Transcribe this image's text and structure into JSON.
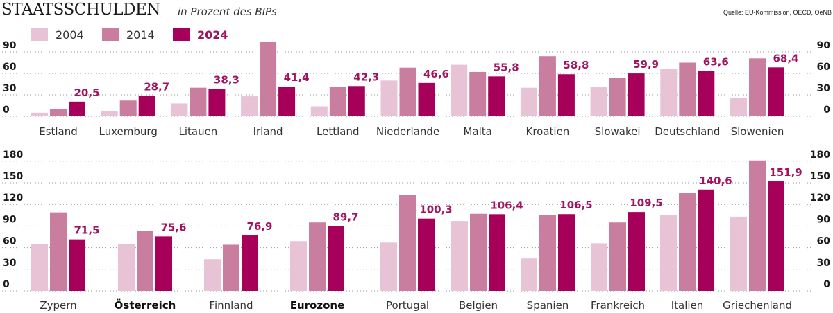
{
  "header": {
    "title": "STAATSSCHULDEN",
    "subtitle": "in Prozent des BIPs",
    "source": "Quelle: EU-Kommission, OECD, OeNB"
  },
  "colors": {
    "y2004": "#e8c3d5",
    "y2014": "#c97e9f",
    "y2024": "#a6005a",
    "label": "#a0145f"
  },
  "legend": [
    {
      "label": "2004",
      "color": "#e8c3d5",
      "bold": false
    },
    {
      "label": "2014",
      "color": "#c97e9f",
      "bold": false
    },
    {
      "label": "2024",
      "color": "#a6005a",
      "bold": true
    }
  ],
  "chart_data": [
    {
      "type": "bar",
      "title": "STAATSSCHULDEN",
      "subtitle": "in Prozent des BIPs",
      "ylabel": "",
      "xlabel": "",
      "ylim": [
        0,
        90
      ],
      "yticks": [
        "0",
        "30",
        "60",
        "90"
      ],
      "ytick_values": [
        0,
        30,
        60,
        90
      ],
      "grid": true,
      "legend_position": "top-left",
      "categories": [
        "Estland",
        "Luxemburg",
        "Litauen",
        "Irland",
        "Lettland",
        "Niederlande",
        "Malta",
        "Kroatien",
        "Slowakei",
        "Deutschland",
        "Slowenien"
      ],
      "bold_categories": [],
      "series": [
        {
          "name": "2004",
          "values": [
            5,
            7,
            18,
            28,
            14,
            50,
            72,
            40,
            41,
            66,
            26
          ]
        },
        {
          "name": "2014",
          "values": [
            10,
            22,
            40,
            104,
            41,
            68,
            62,
            84,
            54,
            75,
            81
          ]
        },
        {
          "name": "2024",
          "values": [
            20.5,
            28.7,
            38.3,
            41.4,
            42.3,
            46.6,
            55.8,
            58.8,
            59.9,
            63.6,
            68.4
          ]
        }
      ],
      "data_labels": [
        "20,5",
        "28,7",
        "38,3",
        "41,4",
        "42,3",
        "46,6",
        "55,8",
        "58,8",
        "59,9",
        "63,6",
        "68,4"
      ]
    },
    {
      "type": "bar",
      "ylim": [
        0,
        180
      ],
      "yticks": [
        "0",
        "30",
        "60",
        "90",
        "120",
        "150",
        "180"
      ],
      "ytick_values": [
        0,
        30,
        60,
        90,
        120,
        150,
        180
      ],
      "grid": true,
      "categories": [
        "Zypern",
        "Österreich",
        "Finnland",
        "Eurozone",
        "Portugal",
        "Belgien",
        "Spanien",
        "Frankreich",
        "Italien",
        "Griechenland"
      ],
      "bold_categories": [
        "Österreich",
        "Eurozone"
      ],
      "series": [
        {
          "name": "2004",
          "values": [
            65,
            65,
            44,
            69,
            67,
            97,
            45,
            66,
            105,
            103
          ]
        },
        {
          "name": "2014",
          "values": [
            109,
            83,
            64,
            95,
            133,
            107,
            105,
            95,
            136,
            181
          ]
        },
        {
          "name": "2024",
          "values": [
            71.5,
            75.6,
            76.9,
            89.7,
            100.3,
            106.4,
            106.5,
            109.5,
            140.6,
            151.9
          ]
        }
      ],
      "data_labels": [
        "71,5",
        "75,6",
        "76,9",
        "89,7",
        "100,3",
        "106,4",
        "106,5",
        "109,5",
        "140,6",
        "151,9"
      ]
    }
  ]
}
